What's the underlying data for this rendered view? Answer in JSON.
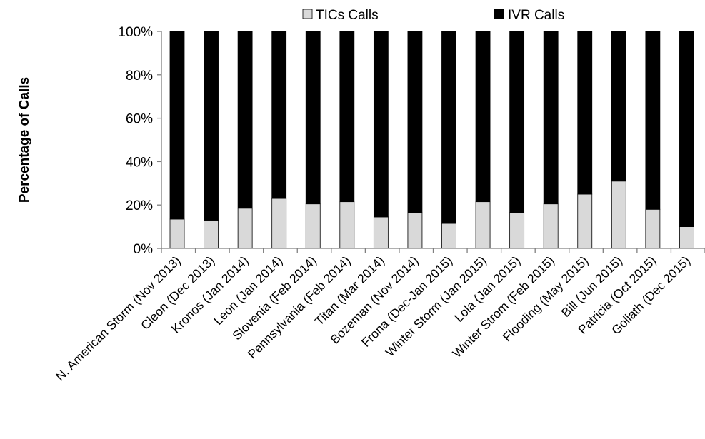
{
  "chart_data": {
    "type": "bar",
    "stacked": true,
    "percent": true,
    "title": "",
    "xlabel": "",
    "ylabel": "Percentage of Calls",
    "ylim": [
      0,
      100
    ],
    "yticks": [
      "0%",
      "20%",
      "40%",
      "60%",
      "80%",
      "100%"
    ],
    "legend_position": "top",
    "grid": false,
    "categories": [
      "N. American Storm (Nov 2013)",
      "Cleon (Dec 2013)",
      "Kronos (Jan 2014)",
      "Leon (Jan 2014)",
      "Slovenia (Feb 2014)",
      "Pennsylvania (Feb 2014)",
      "Titan (Mar 2014)",
      "Bozeman (Nov 2014)",
      "Frona (Dec-Jan 2015)",
      "Winter Storm (Jan 2015)",
      "Lola (Jan 2015)",
      "Winter Strom (Feb 2015)",
      "Flooding (May 2015)",
      "Bill (Jun 2015)",
      "Patricia (Oct 2015)",
      "Goliath (Dec 2015)"
    ],
    "series": [
      {
        "name": "TICs Calls",
        "color": "#d9d9d9",
        "values": [
          13.5,
          13,
          18.5,
          23,
          20.5,
          21.5,
          14.5,
          16.5,
          11.5,
          21.5,
          16.5,
          20.5,
          25,
          31,
          18,
          10
        ]
      },
      {
        "name": "IVR Calls",
        "color": "#000000",
        "values": [
          86.5,
          87,
          81.5,
          77,
          79.5,
          78.5,
          85.5,
          83.5,
          88.5,
          78.5,
          83.5,
          79.5,
          75,
          69,
          82,
          90
        ]
      }
    ]
  }
}
